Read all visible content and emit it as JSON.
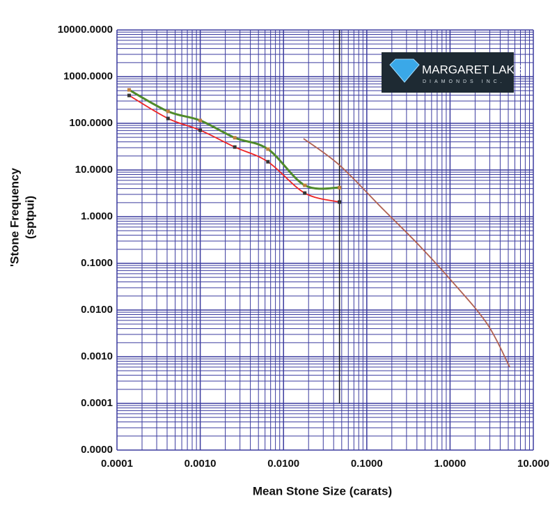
{
  "chart_data": {
    "type": "line",
    "x_label": "Mean Stone Size (carats)",
    "y_label": [
      "'Stone Frequency",
      "(sptpui)"
    ],
    "xscale": "log",
    "yscale": "log",
    "grid": true,
    "grid_color": "#3a3a9e",
    "xlim": [
      0.0001,
      10
    ],
    "xticks": [
      0.0001,
      {
        "value": 0.001,
        "label": "0.0010"
      },
      {
        "value": 0.01,
        "label": "0.0100"
      },
      {
        "value": 0.1,
        "label": "0.1000"
      },
      {
        "value": 1,
        "label": "1.0000"
      },
      {
        "value": 10,
        "label": "10.000"
      }
    ],
    "ylim": [
      1e-05,
      10000
    ],
    "yticks": [
      {
        "value": 10000,
        "label": "10000.0000"
      },
      {
        "value": 1000,
        "label": "1000.0000"
      },
      {
        "value": 100,
        "label": "100.0000"
      },
      {
        "value": 10,
        "label": "10.0000"
      },
      {
        "value": 1,
        "label": "1.0000"
      },
      {
        "value": 0.1,
        "label": "0.1000"
      },
      {
        "value": 0.01,
        "label": "0.0100"
      },
      {
        "value": 0.001,
        "label": "0.0010"
      },
      {
        "value": 0.0001,
        "label": "0.0001"
      },
      {
        "value": 1e-05,
        "label": "0.0000"
      }
    ],
    "series": [
      {
        "color": "#ee2222",
        "marker_color": "#333333",
        "x": [
          0.00014,
          0.00041,
          0.001,
          0.0026,
          0.0065,
          0.018,
          0.047
        ],
        "values": [
          395,
          127,
          71,
          31,
          15,
          3.2,
          2.06
        ]
      },
      {
        "color": "#4f8a2a",
        "marker_color": "#c08040",
        "x": [
          0.00014,
          0.00041,
          0.001,
          0.0026,
          0.0065,
          0.018,
          0.047
        ],
        "values": [
          520,
          180,
          115,
          49,
          28,
          4.7,
          4.2
        ]
      },
      {
        "color": "#b06050",
        "x": [
          0.0174,
          0.047,
          0.156,
          0.41,
          1.07,
          2.8,
          5.2
        ],
        "values": [
          47,
          12.7,
          1.46,
          0.26,
          0.04,
          0.005,
          0.0006
        ]
      }
    ],
    "reference_line": {
      "x": 0.047,
      "ylim": [
        0.0001,
        10000
      ],
      "color": "#111111"
    },
    "logo": {
      "name": "MARGARET LAKE",
      "tagline": "DIAMONDS INC."
    }
  }
}
